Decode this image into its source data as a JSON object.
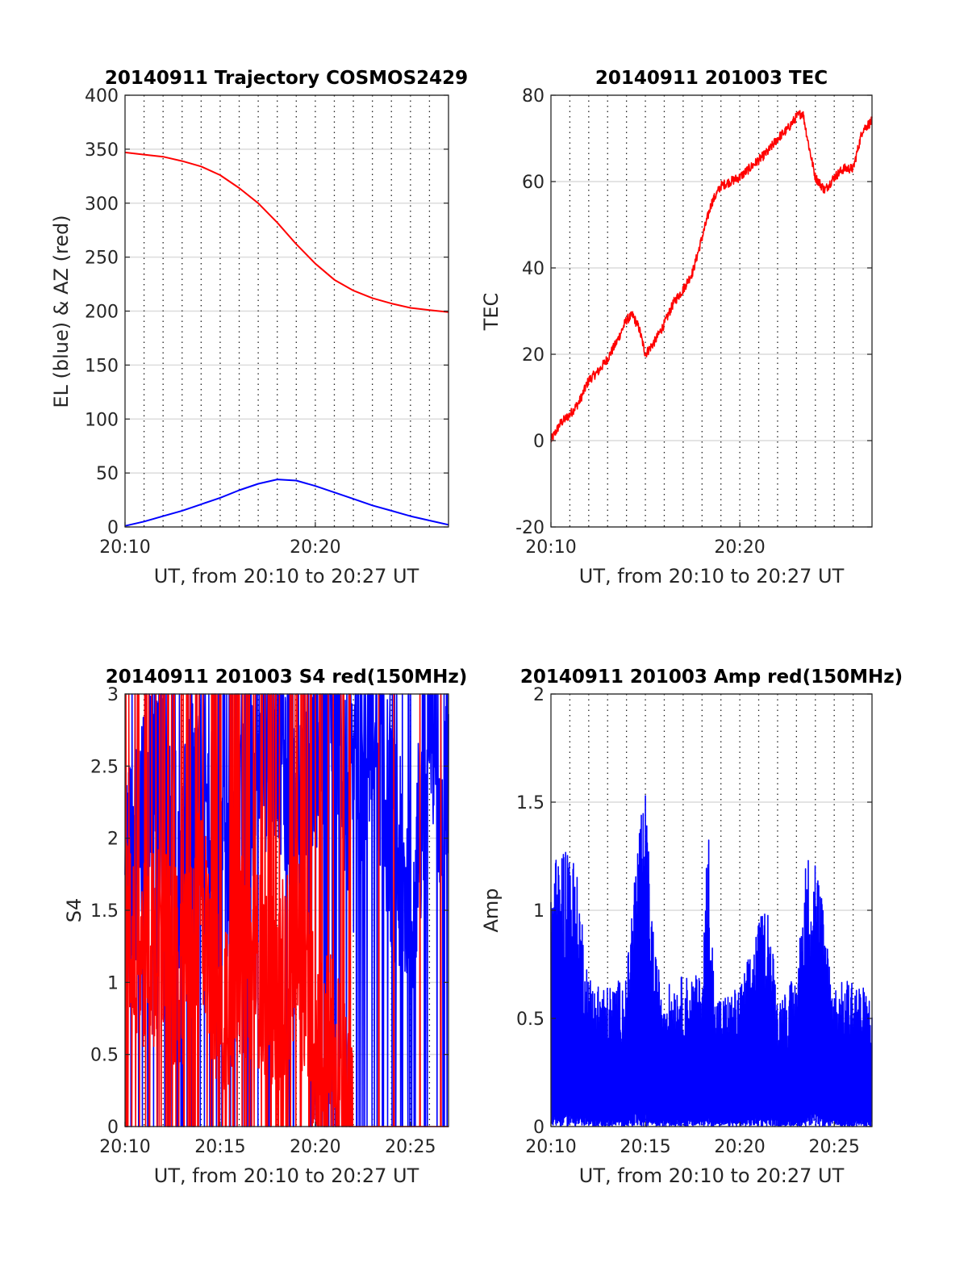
{
  "chart_data": [
    {
      "type": "line",
      "title": "20140911 Trajectory COSMOS2429",
      "xlabel": "UT, from 20:10 to 20:27 UT",
      "ylabel": "EL (blue) & AZ (red)",
      "xlim": [
        "20:10",
        "20:27"
      ],
      "ylim": [
        0,
        400
      ],
      "xticks": [
        "20:10",
        "20:20"
      ],
      "yticks": [
        "0",
        "50",
        "100",
        "150",
        "200",
        "250",
        "300",
        "350",
        "400"
      ],
      "grid": true,
      "series": [
        {
          "color": "#ff0000",
          "x": [
            "20:10",
            "20:11",
            "20:12",
            "20:13",
            "20:14",
            "20:15",
            "20:16",
            "20:17",
            "20:18",
            "20:19",
            "20:20",
            "20:21",
            "20:22",
            "20:23",
            "20:24",
            "20:25",
            "20:26",
            "20:27"
          ],
          "values": [
            347,
            345,
            343,
            339,
            334,
            326,
            314,
            300,
            282,
            262,
            244,
            229,
            219,
            212,
            207,
            203,
            201,
            199
          ]
        },
        {
          "color": "#0000ff",
          "x": [
            "20:10",
            "20:11",
            "20:12",
            "20:13",
            "20:14",
            "20:15",
            "20:16",
            "20:17",
            "20:18",
            "20:19",
            "20:20",
            "20:21",
            "20:22",
            "20:23",
            "20:24",
            "20:25",
            "20:26",
            "20:27"
          ],
          "values": [
            1,
            5,
            10,
            15,
            21,
            27,
            34,
            40,
            44,
            43,
            38,
            32,
            26,
            20,
            15,
            10,
            6,
            2
          ]
        }
      ]
    },
    {
      "type": "line",
      "title": "20140911 201003 TEC",
      "xlabel": "UT, from 20:10 to 20:27 UT",
      "ylabel": "TEC",
      "xlim": [
        "20:10",
        "20:27"
      ],
      "ylim": [
        -20,
        80
      ],
      "xticks": [
        "20:10",
        "20:20"
      ],
      "yticks": [
        "-20",
        "0",
        "20",
        "40",
        "60",
        "80"
      ],
      "grid": true,
      "series": [
        {
          "color": "#ff0000",
          "x": [
            "20:10",
            "20:10:30",
            "20:11",
            "20:11:30",
            "20:12",
            "20:12:30",
            "20:13",
            "20:13:30",
            "20:14",
            "20:14:20",
            "20:14:40",
            "20:15",
            "20:15:30",
            "20:16",
            "20:16:30",
            "20:17",
            "20:17:30",
            "20:18",
            "20:18:30",
            "20:19",
            "20:19:30",
            "20:20",
            "20:20:30",
            "20:21",
            "20:21:30",
            "20:22",
            "20:22:30",
            "20:23",
            "20:23:20",
            "20:23:40",
            "20:24",
            "20:24:30",
            "20:25",
            "20:25:30",
            "20:26",
            "20:26:30",
            "20:27"
          ],
          "values": [
            0,
            4,
            6,
            9,
            14,
            16,
            19,
            23,
            28,
            29,
            26,
            20,
            23,
            27,
            32,
            35,
            39,
            47,
            55,
            59,
            60,
            61,
            63,
            65,
            67,
            70,
            72,
            75,
            76,
            68,
            61,
            58,
            61,
            63,
            63,
            72,
            74
          ]
        }
      ]
    },
    {
      "type": "line",
      "title": "20140911 201003 S4 red(150MHz)",
      "xlabel": "UT, from 20:10 to 20:27 UT",
      "ylabel": "S4",
      "xlim": [
        "20:10",
        "20:27"
      ],
      "ylim": [
        0,
        3
      ],
      "xticks": [
        "20:10",
        "20:15",
        "20:20",
        "20:25"
      ],
      "yticks": [
        "0",
        "0.5",
        "1",
        "1.5",
        "2",
        "2.5",
        "3"
      ],
      "grid": true,
      "series": [
        {
          "color": "#0000ff",
          "x": [
            "20:10",
            "20:11",
            "20:12",
            "20:13",
            "20:14",
            "20:15",
            "20:16",
            "20:17",
            "20:18",
            "20:19",
            "20:20",
            "20:21",
            "20:22",
            "20:23",
            "20:24",
            "20:25",
            "20:26",
            "20:27"
          ],
          "values": [
            1.6,
            2.2,
            2.3,
            1.8,
            2.4,
            1.6,
            1.9,
            2.6,
            2.8,
            2.2,
            2.7,
            2.9,
            2.1,
            3.0,
            2.0,
            1.5,
            2.6,
            2.4
          ]
        },
        {
          "color": "#ff0000",
          "x": [
            "20:10",
            "20:11",
            "20:12",
            "20:13",
            "20:14",
            "20:15",
            "20:16",
            "20:17",
            "20:18",
            "20:19",
            "20:20",
            "20:21",
            "20:22",
            "20:23",
            "20:24",
            "20:25",
            "20:26",
            "20:27"
          ],
          "values": [
            1.4,
            1.2,
            1.3,
            1.0,
            1.6,
            0.8,
            1.2,
            1.1,
            0.9,
            1.3,
            0.6,
            0.5,
            0.0,
            0.0,
            0.0,
            0.0,
            0.0,
            0.0
          ]
        }
      ]
    },
    {
      "type": "line",
      "title": "20140911 201003 Amp red(150MHz)",
      "xlabel": "UT, from 20:10 to 20:27 UT",
      "ylabel": "Amp",
      "xlim": [
        "20:10",
        "20:27"
      ],
      "ylim": [
        0,
        2
      ],
      "xticks": [
        "20:10",
        "20:15",
        "20:20",
        "20:25"
      ],
      "yticks": [
        "0",
        "0.5",
        "1",
        "1.5",
        "2"
      ],
      "grid": true,
      "series": [
        {
          "color": "#0000ff",
          "x": [
            "20:10",
            "20:10:30",
            "20:11",
            "20:11:30",
            "20:12",
            "20:13",
            "20:14",
            "20:14:30",
            "20:15",
            "20:15:30",
            "20:16",
            "20:17",
            "20:18",
            "20:18:20",
            "20:18:40",
            "20:19",
            "20:20",
            "20:21",
            "20:21:30",
            "20:22",
            "20:23",
            "20:23:30",
            "20:24",
            "20:25",
            "20:26",
            "20:27"
          ],
          "values": [
            1.2,
            1.3,
            1.35,
            1.1,
            0.7,
            0.65,
            0.7,
            1.3,
            1.55,
            0.8,
            0.65,
            0.7,
            0.7,
            1.45,
            0.6,
            0.6,
            0.65,
            0.95,
            1.05,
            0.6,
            0.7,
            1.25,
            1.3,
            0.65,
            0.7,
            0.6
          ]
        }
      ]
    }
  ]
}
